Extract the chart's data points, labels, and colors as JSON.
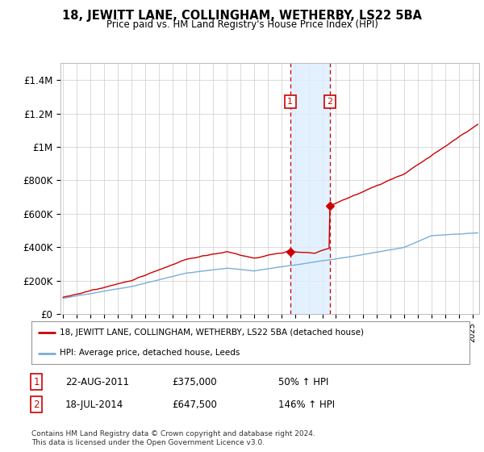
{
  "title": "18, JEWITT LANE, COLLINGHAM, WETHERBY, LS22 5BA",
  "subtitle": "Price paid vs. HM Land Registry's House Price Index (HPI)",
  "ylabel_ticks": [
    "£0",
    "£200K",
    "£400K",
    "£600K",
    "£800K",
    "£1M",
    "£1.2M",
    "£1.4M"
  ],
  "ylabel_values": [
    0,
    200000,
    400000,
    600000,
    800000,
    1000000,
    1200000,
    1400000
  ],
  "ylim": [
    0,
    1500000
  ],
  "xlim_start": 1994.8,
  "xlim_end": 2025.5,
  "transaction_color": "#cc0000",
  "hpi_color": "#7aaed6",
  "sale1_date": 2011.64,
  "sale1_price": 375000,
  "sale2_date": 2014.54,
  "sale2_price": 647500,
  "legend_line1": "18, JEWITT LANE, COLLINGHAM, WETHERBY, LS22 5BA (detached house)",
  "legend_line2": "HPI: Average price, detached house, Leeds",
  "footnote": "Contains HM Land Registry data © Crown copyright and database right 2024.\nThis data is licensed under the Open Government Licence v3.0.",
  "background_color": "#ffffff",
  "grid_color": "#cccccc",
  "shade_color": "#ddeeff"
}
